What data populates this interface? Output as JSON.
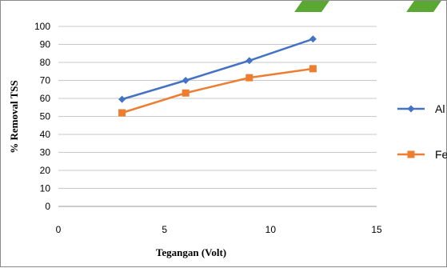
{
  "chart_data": {
    "type": "line",
    "xlabel": "Tegangan (Volt)",
    "ylabel": "% Removal TSS",
    "xlim": [
      0,
      15
    ],
    "ylim": [
      0,
      100
    ],
    "x_ticks": [
      0,
      5,
      10,
      15
    ],
    "y_ticks": [
      0,
      10,
      20,
      30,
      40,
      50,
      60,
      70,
      80,
      90,
      100
    ],
    "grid": "horizontal",
    "legend_position": "right",
    "x": [
      3,
      6,
      9,
      12
    ],
    "series": [
      {
        "name": "Al",
        "values": [
          59.5,
          70,
          81,
          93
        ],
        "color": "#4472C4",
        "marker": "diamond"
      },
      {
        "name": "Fe",
        "values": [
          52,
          63,
          71.5,
          76.5
        ],
        "color": "#ED7D31",
        "marker": "square"
      }
    ]
  }
}
